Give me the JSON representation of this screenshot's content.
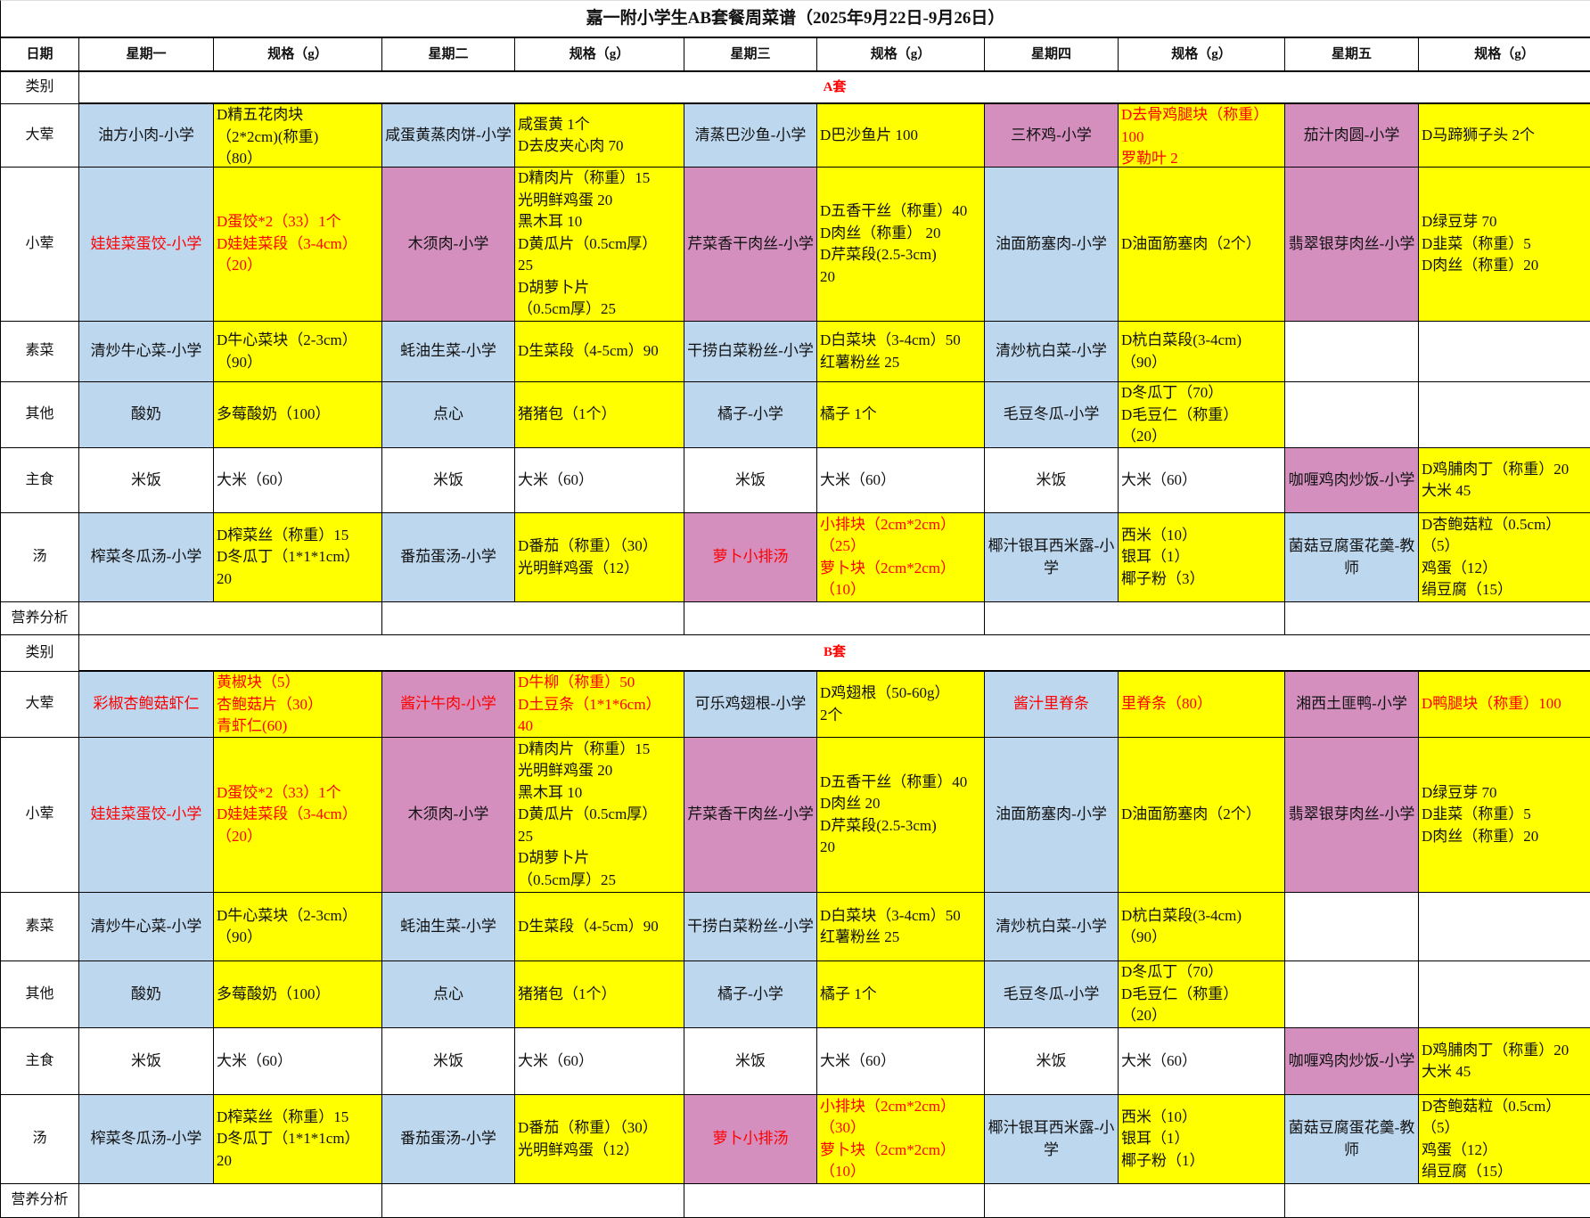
{
  "title": "嘉一附小学生AB套餐周菜谱（2025年9月22日-9月26日）",
  "header": [
    "日期",
    "星期一",
    "规格（g）",
    "星期二",
    "规格（g）",
    "星期三",
    "规格（g）",
    "星期四",
    "规格（g）",
    "星期五",
    "规格（g）"
  ],
  "colors": {
    "b": "#bdd7ee",
    "p": "#d48fbe",
    "y": "#ffff00",
    "w": "#ffffff",
    "red_text": "#ff0000"
  },
  "category_label": "类别",
  "nutrition_label": "营养分析",
  "sets": [
    {
      "name": "A套",
      "rows": [
        {
          "label": "大荤",
          "cells": [
            [
              "b",
              "油方小肉-小学"
            ],
            [
              "y",
              "D精五花肉块\n（2*2cm)(称重)\n（80）"
            ],
            [
              "b",
              "咸蛋黄蒸肉饼-小学"
            ],
            [
              "y",
              "咸蛋黄 1个\nD去皮夹心肉 70"
            ],
            [
              "b",
              "清蒸巴沙鱼-小学"
            ],
            [
              "y",
              "D巴沙鱼片 100"
            ],
            [
              "p",
              "三杯鸡-小学"
            ],
            [
              "y",
              "D去骨鸡腿块（称重）\n100\n罗勒叶 2",
              1
            ],
            [
              "p",
              "茄汁肉圆-小学"
            ],
            [
              "y",
              "D马蹄狮子头 2个"
            ]
          ]
        },
        {
          "label": "小荤",
          "cells": [
            [
              "b",
              "娃娃菜蛋饺-小学",
              1
            ],
            [
              "y",
              "D蛋饺*2（33）1个\nD娃娃菜段（3-4cm）\n（20）",
              1
            ],
            [
              "p",
              "木须肉-小学"
            ],
            [
              "y",
              "D精肉片（称重）15\n光明鲜鸡蛋 20\n黑木耳 10\nD黄瓜片（0.5cm厚）\n25\nD胡萝卜片\n（0.5cm厚）25"
            ],
            [
              "p",
              "芹菜香干肉丝-小学"
            ],
            [
              "y",
              "D五香干丝（称重）40\nD肉丝（称重） 20\nD芹菜段(2.5-3cm)\n20"
            ],
            [
              "b",
              "油面筋塞肉-小学"
            ],
            [
              "y",
              "D油面筋塞肉（2个）"
            ],
            [
              "p",
              "翡翠银芽肉丝-小学"
            ],
            [
              "y",
              "D绿豆芽 70\nD韭菜（称重）5\nD肉丝（称重）20"
            ]
          ]
        },
        {
          "label": "素菜",
          "cells": [
            [
              "b",
              "清炒牛心菜-小学"
            ],
            [
              "y",
              "D牛心菜块（2-3cm）\n（90）"
            ],
            [
              "b",
              "蚝油生菜-小学"
            ],
            [
              "y",
              "D生菜段（4-5cm）90"
            ],
            [
              "b",
              "干捞白菜粉丝-小学"
            ],
            [
              "y",
              "D白菜块（3-4cm）50\n红薯粉丝 25"
            ],
            [
              "b",
              "清炒杭白菜-小学"
            ],
            [
              "y",
              "D杭白菜段(3-4cm)\n（90）"
            ],
            [
              "w",
              ""
            ],
            [
              "w",
              ""
            ]
          ]
        },
        {
          "label": "其他",
          "cells": [
            [
              "b",
              "酸奶"
            ],
            [
              "y",
              "多莓酸奶（100）"
            ],
            [
              "b",
              "点心"
            ],
            [
              "y",
              "猪猪包（1个）"
            ],
            [
              "b",
              "橘子-小学"
            ],
            [
              "y",
              "橘子 1个"
            ],
            [
              "b",
              "毛豆冬瓜-小学"
            ],
            [
              "y",
              "D冬瓜丁（70）\nD毛豆仁（称重）\n（20）"
            ],
            [
              "w",
              ""
            ],
            [
              "w",
              ""
            ]
          ]
        },
        {
          "label": "主食",
          "cells": [
            [
              "w",
              "米饭"
            ],
            [
              "w",
              "大米（60）"
            ],
            [
              "w",
              "米饭"
            ],
            [
              "w",
              "大米（60）"
            ],
            [
              "w",
              "米饭"
            ],
            [
              "w",
              "大米（60）"
            ],
            [
              "w",
              "米饭"
            ],
            [
              "w",
              "大米（60）"
            ],
            [
              "p",
              "咖喱鸡肉炒饭-小学"
            ],
            [
              "y",
              "D鸡脯肉丁（称重）20\n大米 45"
            ]
          ]
        },
        {
          "label": "汤",
          "cells": [
            [
              "b",
              "榨菜冬瓜汤-小学"
            ],
            [
              "y",
              "D榨菜丝（称重）15\nD冬瓜丁（1*1*1cm）\n20"
            ],
            [
              "b",
              "番茄蛋汤-小学"
            ],
            [
              "y",
              "D番茄（称重）（30）\n光明鲜鸡蛋（12）"
            ],
            [
              "p",
              "萝卜小排汤",
              1
            ],
            [
              "y",
              "小排块（2cm*2cm）\n（25）\n萝卜块（2cm*2cm）\n（10）",
              1
            ],
            [
              "b",
              "椰汁银耳西米露-小学"
            ],
            [
              "y",
              "西米（10）\n银耳（1）\n椰子粉（3）"
            ],
            [
              "b",
              "菌菇豆腐蛋花羹-教师"
            ],
            [
              "y",
              "D杏鲍菇粒（0.5cm）\n（5）\n鸡蛋（12）\n绢豆腐（15）"
            ]
          ]
        }
      ]
    },
    {
      "name": "B套",
      "rows": [
        {
          "label": "大荤",
          "cells": [
            [
              "b",
              "彩椒杏鲍菇虾仁",
              1
            ],
            [
              "y",
              "黄椒块（5）\n杏鲍菇片（30）\n青虾仁(60)",
              1
            ],
            [
              "p",
              "酱汁牛肉-小学",
              1
            ],
            [
              "y",
              "D牛柳（称重）50\nD土豆条（1*1*6cm）\n40",
              1
            ],
            [
              "b",
              "可乐鸡翅根-小学"
            ],
            [
              "y",
              "D鸡翅根（50-60g）\n2个"
            ],
            [
              "b",
              "酱汁里脊条",
              1
            ],
            [
              "y",
              "里脊条（80）",
              1
            ],
            [
              "p",
              "湘西土匪鸭-小学"
            ],
            [
              "y",
              "D鸭腿块（称重）100",
              1
            ]
          ]
        },
        {
          "label": "小荤",
          "cells": [
            [
              "b",
              "娃娃菜蛋饺-小学",
              1
            ],
            [
              "y",
              "D蛋饺*2（33）1个\nD娃娃菜段（3-4cm）\n（20）",
              1
            ],
            [
              "p",
              "木须肉-小学"
            ],
            [
              "y",
              "D精肉片（称重）15\n光明鲜鸡蛋 20\n黑木耳 10\nD黄瓜片（0.5cm厚）\n25\nD胡萝卜片\n（0.5cm厚）25"
            ],
            [
              "p",
              "芹菜香干肉丝-小学"
            ],
            [
              "y",
              "D五香干丝（称重）40\nD肉丝 20\nD芹菜段(2.5-3cm)\n20"
            ],
            [
              "b",
              "油面筋塞肉-小学"
            ],
            [
              "y",
              "D油面筋塞肉（2个）"
            ],
            [
              "p",
              "翡翠银芽肉丝-小学"
            ],
            [
              "y",
              "D绿豆芽 70\nD韭菜（称重）5\nD肉丝（称重）20"
            ]
          ]
        },
        {
          "label": "素菜",
          "cells": [
            [
              "b",
              "清炒牛心菜-小学"
            ],
            [
              "y",
              "D牛心菜块（2-3cm）\n（90）"
            ],
            [
              "b",
              "蚝油生菜-小学"
            ],
            [
              "y",
              "D生菜段（4-5cm）90"
            ],
            [
              "b",
              "干捞白菜粉丝-小学"
            ],
            [
              "y",
              "D白菜块（3-4cm）50\n红薯粉丝 25"
            ],
            [
              "b",
              "清炒杭白菜-小学"
            ],
            [
              "y",
              "D杭白菜段(3-4cm)\n（90）"
            ],
            [
              "w",
              ""
            ],
            [
              "w",
              ""
            ]
          ]
        },
        {
          "label": "其他",
          "cells": [
            [
              "b",
              "酸奶"
            ],
            [
              "y",
              "多莓酸奶（100）"
            ],
            [
              "b",
              "点心"
            ],
            [
              "y",
              "猪猪包（1个）"
            ],
            [
              "b",
              "橘子-小学"
            ],
            [
              "y",
              "橘子 1个"
            ],
            [
              "b",
              "毛豆冬瓜-小学"
            ],
            [
              "y",
              "D冬瓜丁（70）\nD毛豆仁（称重）\n（20）"
            ],
            [
              "w",
              ""
            ],
            [
              "w",
              ""
            ]
          ]
        },
        {
          "label": "主食",
          "cells": [
            [
              "w",
              "米饭"
            ],
            [
              "w",
              "大米（60）"
            ],
            [
              "w",
              "米饭"
            ],
            [
              "w",
              "大米（60）"
            ],
            [
              "w",
              "米饭"
            ],
            [
              "w",
              "大米（60）"
            ],
            [
              "w",
              "米饭"
            ],
            [
              "w",
              "大米（60）"
            ],
            [
              "p",
              "咖喱鸡肉炒饭-小学"
            ],
            [
              "y",
              "D鸡脯肉丁（称重）20\n大米 45"
            ]
          ]
        },
        {
          "label": "汤",
          "cells": [
            [
              "b",
              "榨菜冬瓜汤-小学"
            ],
            [
              "y",
              "D榨菜丝（称重）15\nD冬瓜丁（1*1*1cm）\n20"
            ],
            [
              "b",
              "番茄蛋汤-小学"
            ],
            [
              "y",
              "D番茄（称重）（30）\n光明鲜鸡蛋（12）"
            ],
            [
              "p",
              "萝卜小排汤",
              1
            ],
            [
              "y",
              "小排块（2cm*2cm）\n（30）\n萝卜块（2cm*2cm）\n（10）",
              1
            ],
            [
              "b",
              "椰汁银耳西米露-小学"
            ],
            [
              "y",
              "西米（10）\n银耳（1）\n椰子粉（1）"
            ],
            [
              "b",
              "菌菇豆腐蛋花羹-教师"
            ],
            [
              "y",
              "D杏鲍菇粒（0.5cm）\n（5）\n鸡蛋（12）\n绢豆腐（15）"
            ]
          ]
        }
      ]
    }
  ]
}
